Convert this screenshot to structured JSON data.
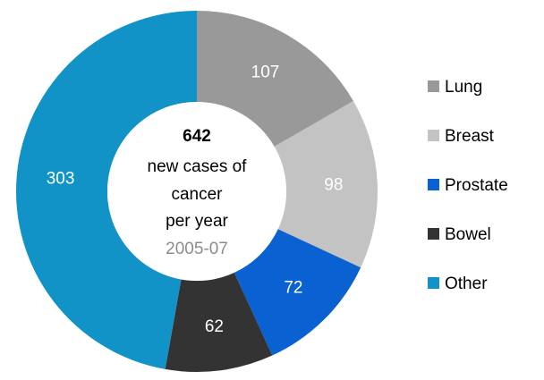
{
  "chart_data": {
    "type": "pie",
    "categories": [
      "Lung",
      "Breast",
      "Prostate",
      "Bowel",
      "Other"
    ],
    "values": [
      107,
      98,
      72,
      62,
      303
    ],
    "colors": [
      "#999999",
      "#c3c3c3",
      "#0a62d2",
      "#333333",
      "#1193c8"
    ],
    "donut": true,
    "legend": "right",
    "center_total": 642,
    "center_lines": [
      "new cases of",
      "cancer",
      "per year"
    ],
    "center_period": "2005-07"
  }
}
